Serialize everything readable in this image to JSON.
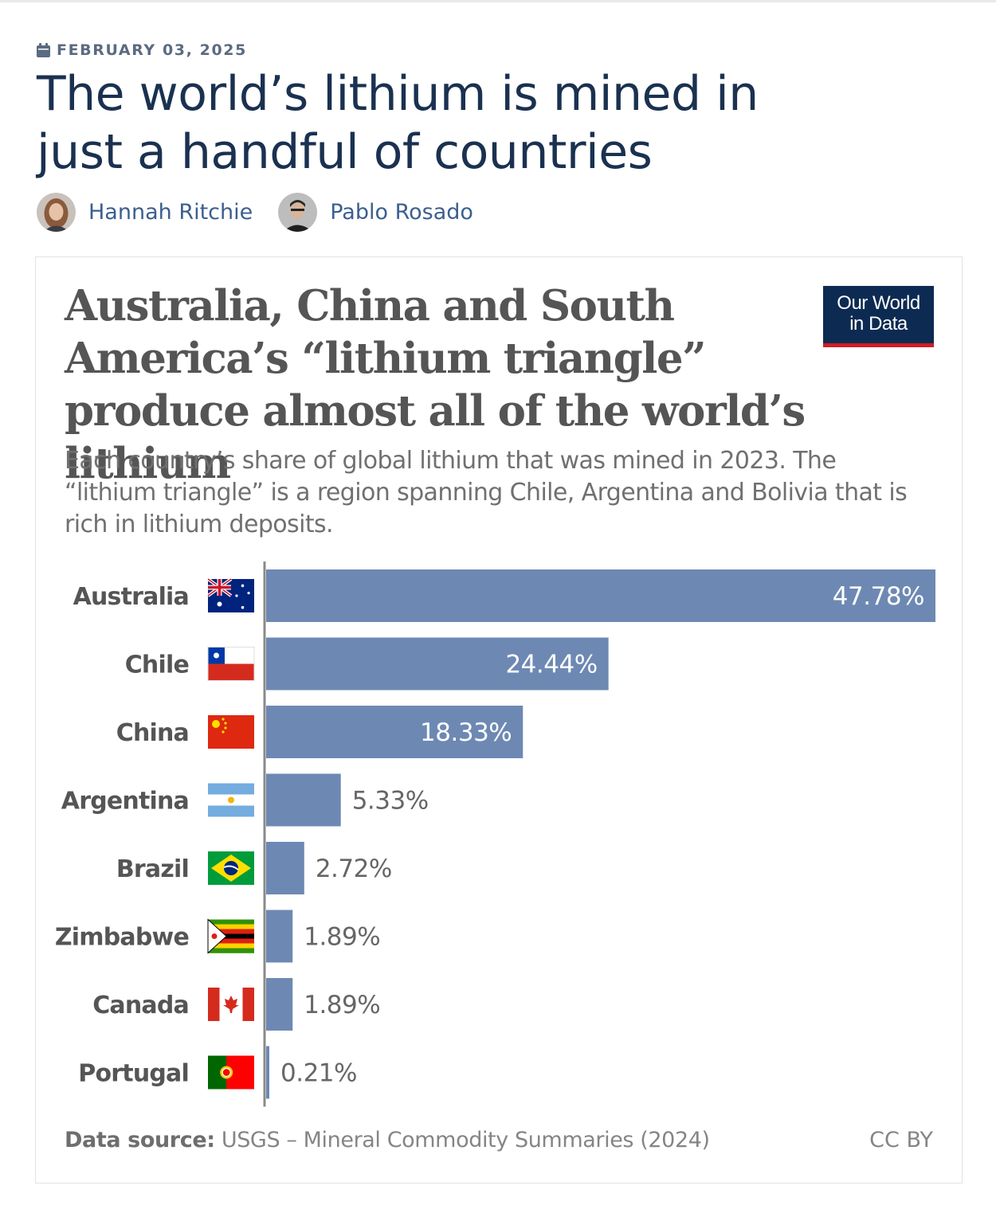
{
  "article": {
    "date": "FEBRUARY 03, 2025",
    "title": "The world’s lithium is mined in just a handful of countries",
    "authors": [
      {
        "name": "Hannah Ritchie"
      },
      {
        "name": "Pablo Rosado"
      }
    ]
  },
  "logo": {
    "line1": "Our World",
    "line2": "in Data"
  },
  "chart_data": {
    "type": "bar",
    "orientation": "horizontal",
    "title": "Australia, China and South America’s “lithium triangle” produce almost all of the world’s lithium",
    "subtitle": "Each country’s share of global lithium that was mined in 2023. The “lithium triangle” is a region spanning Chile, Argentina and Bolivia that is rich in lithium deposits.",
    "categories": [
      "Australia",
      "Chile",
      "China",
      "Argentina",
      "Brazil",
      "Zimbabwe",
      "Canada",
      "Portugal"
    ],
    "values": [
      47.78,
      24.44,
      18.33,
      5.33,
      2.72,
      1.89,
      1.89,
      0.21
    ],
    "labels": [
      "47.78%",
      "24.44%",
      "18.33%",
      "5.33%",
      "2.72%",
      "1.89%",
      "1.89%",
      "0.21%"
    ],
    "unit": "%",
    "xlim": [
      0,
      47.78
    ],
    "bar_color": "#6d89b3",
    "flags": [
      "australia-flag",
      "chile-flag",
      "china-flag",
      "argentina-flag",
      "brazil-flag",
      "zimbabwe-flag",
      "canada-flag",
      "portugal-flag"
    ],
    "source_label": "Data source:",
    "source": "USGS – Mineral Commodity Summaries (2024)",
    "license": "CC BY"
  }
}
